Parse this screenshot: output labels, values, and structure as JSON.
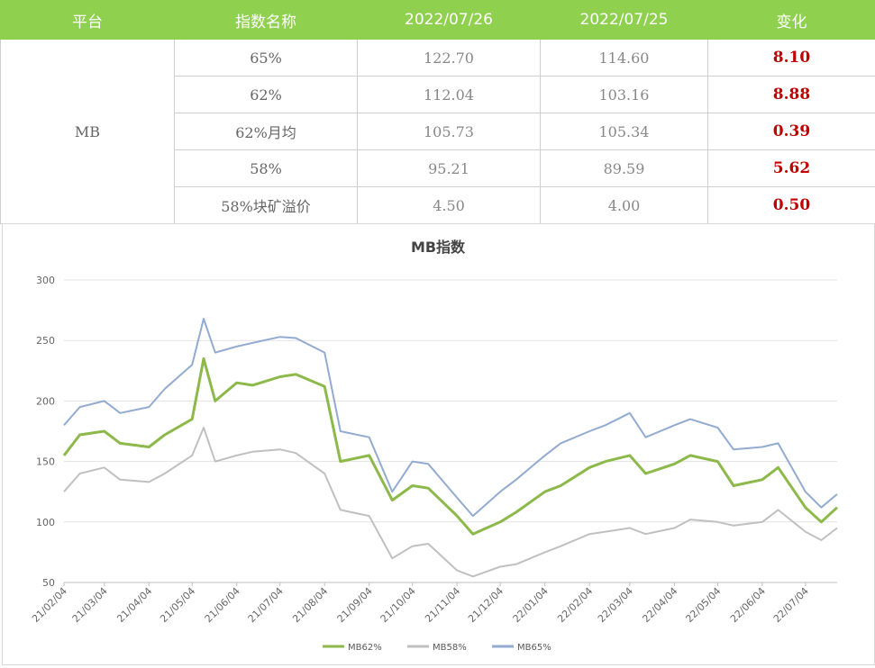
{
  "table": {
    "headers": [
      "平台",
      "指数名称",
      "2022/07/26",
      "2022/07/25",
      "变化"
    ],
    "platform": "MB",
    "rows": [
      {
        "name": "65%",
        "v1": "122.70",
        "v2": "114.60",
        "chg": "8.10"
      },
      {
        "name": "62%",
        "v1": "112.04",
        "v2": "103.16",
        "chg": "8.88"
      },
      {
        "name": "62%月均",
        "v1": "105.73",
        "v2": "105.34",
        "chg": "0.39"
      },
      {
        "name": "58%",
        "v1": "95.21",
        "v2": "89.59",
        "chg": "5.62"
      },
      {
        "name": "58%块矿溢价",
        "v1": "4.50",
        "v2": "4.00",
        "chg": "0.50"
      }
    ]
  },
  "chart_data": {
    "type": "line",
    "title": "MB指数",
    "xlabel": "",
    "ylabel": "",
    "ylim": [
      50,
      300
    ],
    "yticks": [
      50,
      100,
      150,
      200,
      250,
      300
    ],
    "xticks": [
      "21/02/04",
      "21/03/04",
      "21/04/04",
      "21/05/04",
      "21/06/04",
      "21/07/04",
      "21/08/04",
      "21/09/04",
      "21/10/04",
      "21/11/04",
      "21/12/04",
      "22/01/04",
      "22/02/04",
      "22/03/04",
      "22/04/04",
      "22/05/04",
      "22/06/04",
      "22/07/04"
    ],
    "x": [
      "21/02/04",
      "21/02/15",
      "21/03/04",
      "21/03/15",
      "21/04/04",
      "21/04/15",
      "21/05/04",
      "21/05/12",
      "21/05/20",
      "21/06/04",
      "21/06/15",
      "21/07/04",
      "21/07/15",
      "21/08/04",
      "21/08/15",
      "21/09/04",
      "21/09/20",
      "21/10/04",
      "21/10/15",
      "21/11/04",
      "21/11/15",
      "21/12/04",
      "21/12/15",
      "22/01/04",
      "22/01/15",
      "22/02/04",
      "22/02/15",
      "22/03/04",
      "22/03/15",
      "22/04/04",
      "22/04/15",
      "22/05/04",
      "22/05/15",
      "22/06/04",
      "22/06/15",
      "22/07/04",
      "22/07/15",
      "22/07/26"
    ],
    "series": [
      {
        "name": "MB62%",
        "color": "#8db84a",
        "values": [
          155,
          172,
          175,
          165,
          162,
          172,
          185,
          235,
          200,
          215,
          213,
          220,
          222,
          212,
          150,
          155,
          118,
          130,
          128,
          105,
          90,
          100,
          108,
          125,
          130,
          145,
          150,
          155,
          140,
          148,
          155,
          150,
          130,
          135,
          145,
          112,
          100,
          112
        ]
      },
      {
        "name": "MB58%",
        "color": "#c0c0c0",
        "values": [
          125,
          140,
          145,
          135,
          133,
          140,
          155,
          178,
          150,
          155,
          158,
          160,
          157,
          140,
          110,
          105,
          70,
          80,
          82,
          60,
          55,
          63,
          65,
          75,
          80,
          90,
          92,
          95,
          90,
          95,
          102,
          100,
          97,
          100,
          110,
          92,
          85,
          95
        ]
      },
      {
        "name": "MB65%",
        "color": "#93abd0",
        "values": [
          180,
          195,
          200,
          190,
          195,
          210,
          230,
          268,
          240,
          245,
          248,
          253,
          252,
          240,
          175,
          170,
          125,
          150,
          148,
          120,
          105,
          125,
          135,
          155,
          165,
          175,
          180,
          190,
          170,
          180,
          185,
          178,
          160,
          162,
          165,
          125,
          112,
          123
        ]
      }
    ],
    "legend_position": "bottom"
  }
}
